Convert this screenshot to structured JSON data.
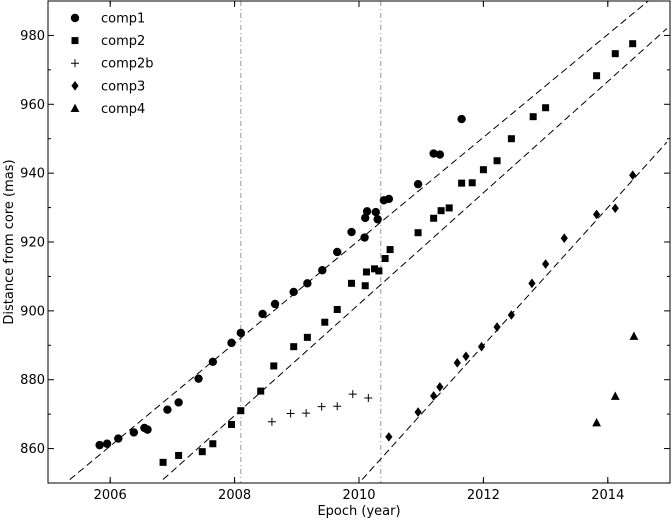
{
  "chart_data": {
    "type": "scatter",
    "xlabel": "Epoch (year)",
    "ylabel": "Distance from core (mas)",
    "xlim": [
      2005,
      2015
    ],
    "ylim": [
      850,
      990
    ],
    "xticks": [
      2006,
      2008,
      2010,
      2012,
      2014
    ],
    "yticks": [
      860,
      880,
      900,
      920,
      940,
      960,
      980
    ],
    "legend_position": "top-left",
    "grid": false,
    "vlines": [
      2008.1,
      2010.35
    ],
    "fit_lines": [
      {
        "x": [
          2005.35,
          2014.85
        ],
        "y": [
          851,
          993
        ]
      },
      {
        "x": [
          2006.85,
          2014.95
        ],
        "y": [
          851,
          982
        ]
      },
      {
        "x": [
          2010.05,
          2014.95
        ],
        "y": [
          851,
          949
        ]
      }
    ],
    "series": [
      {
        "name": "comp1",
        "marker": "circle",
        "points": [
          [
            2005.83,
            861.0
          ],
          [
            2005.95,
            861.4
          ],
          [
            2006.13,
            862.9
          ],
          [
            2006.38,
            864.7
          ],
          [
            2006.55,
            866.0
          ],
          [
            2006.6,
            865.5
          ],
          [
            2006.92,
            871.3
          ],
          [
            2007.1,
            873.4
          ],
          [
            2007.42,
            880.3
          ],
          [
            2007.65,
            885.2
          ],
          [
            2007.95,
            890.7
          ],
          [
            2008.1,
            893.6
          ],
          [
            2008.45,
            899.1
          ],
          [
            2008.65,
            902.0
          ],
          [
            2008.95,
            905.5
          ],
          [
            2009.17,
            908.0
          ],
          [
            2009.41,
            911.8
          ],
          [
            2009.65,
            917.1
          ],
          [
            2009.88,
            922.9
          ],
          [
            2010.09,
            921.3
          ],
          [
            2010.1,
            927.0
          ],
          [
            2010.13,
            928.9
          ],
          [
            2010.27,
            928.7
          ],
          [
            2010.3,
            926.6
          ],
          [
            2010.4,
            932.1
          ],
          [
            2010.48,
            932.5
          ],
          [
            2010.95,
            936.8
          ],
          [
            2011.2,
            945.7
          ],
          [
            2011.3,
            945.4
          ],
          [
            2011.65,
            955.7
          ]
        ]
      },
      {
        "name": "comp2",
        "marker": "square",
        "points": [
          [
            2006.85,
            856.0
          ],
          [
            2007.1,
            858.0
          ],
          [
            2007.48,
            859.1
          ],
          [
            2007.65,
            861.4
          ],
          [
            2007.95,
            867.0
          ],
          [
            2008.1,
            871.0
          ],
          [
            2008.42,
            876.7
          ],
          [
            2008.63,
            884.0
          ],
          [
            2008.95,
            889.6
          ],
          [
            2009.17,
            892.3
          ],
          [
            2009.45,
            896.7
          ],
          [
            2009.65,
            900.4
          ],
          [
            2009.88,
            908.0
          ],
          [
            2010.1,
            907.3
          ],
          [
            2010.12,
            911.3
          ],
          [
            2010.25,
            912.2
          ],
          [
            2010.32,
            911.6
          ],
          [
            2010.42,
            915.2
          ],
          [
            2010.5,
            917.8
          ],
          [
            2010.95,
            922.7
          ],
          [
            2011.2,
            926.9
          ],
          [
            2011.32,
            929.1
          ],
          [
            2011.45,
            929.9
          ],
          [
            2011.65,
            937.1
          ],
          [
            2011.82,
            937.2
          ],
          [
            2012.0,
            941.0
          ],
          [
            2012.22,
            943.6
          ],
          [
            2012.45,
            950.0
          ],
          [
            2012.8,
            956.4
          ],
          [
            2013.0,
            959.0
          ],
          [
            2013.82,
            968.3
          ],
          [
            2014.12,
            974.7
          ],
          [
            2014.4,
            977.6
          ]
        ]
      },
      {
        "name": "comp2b",
        "marker": "plus",
        "points": [
          [
            2008.6,
            867.8
          ],
          [
            2008.9,
            870.2
          ],
          [
            2009.15,
            870.3
          ],
          [
            2009.4,
            872.2
          ],
          [
            2009.65,
            872.3
          ],
          [
            2009.9,
            875.8
          ],
          [
            2010.15,
            874.7
          ]
        ]
      },
      {
        "name": "comp3",
        "marker": "diamond",
        "points": [
          [
            2010.48,
            863.4
          ],
          [
            2010.95,
            870.6
          ],
          [
            2011.2,
            875.3
          ],
          [
            2011.3,
            877.9
          ],
          [
            2011.58,
            884.9
          ],
          [
            2011.72,
            886.8
          ],
          [
            2011.97,
            889.6
          ],
          [
            2012.22,
            895.3
          ],
          [
            2012.45,
            898.8
          ],
          [
            2012.78,
            908.0
          ],
          [
            2013.0,
            913.6
          ],
          [
            2013.3,
            921.1
          ],
          [
            2013.82,
            928.0
          ],
          [
            2014.12,
            929.8
          ],
          [
            2014.4,
            939.4
          ]
        ]
      },
      {
        "name": "comp4",
        "marker": "triangle",
        "points": [
          [
            2013.82,
            867.5
          ],
          [
            2014.12,
            875.2
          ],
          [
            2014.42,
            892.6
          ]
        ]
      }
    ]
  }
}
